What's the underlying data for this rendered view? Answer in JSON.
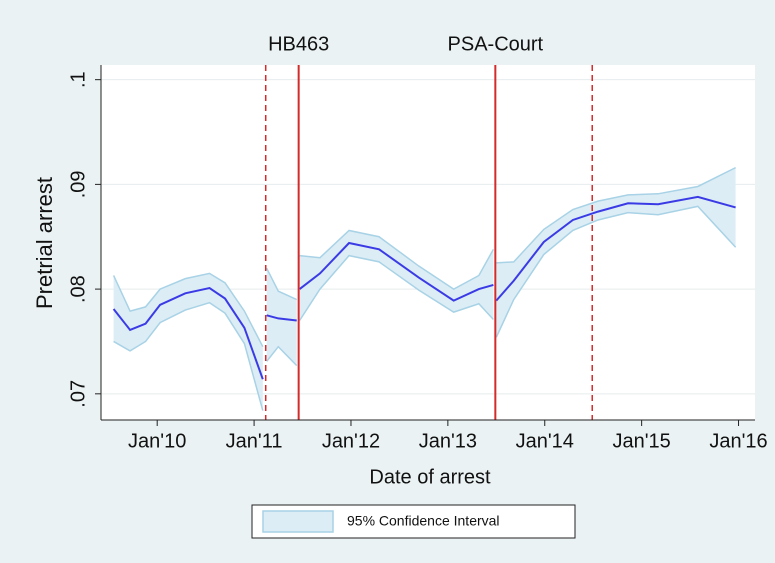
{
  "chart_data": {
    "type": "line",
    "x_label": "Date of arrest",
    "y_label": "Pretrial arrest",
    "xlim": [
      2009.42,
      2016.17
    ],
    "ylim": [
      0.0675,
      0.1014
    ],
    "xticks": [
      {
        "value": 2010,
        "label": "Jan'10"
      },
      {
        "value": 2011,
        "label": "Jan'11"
      },
      {
        "value": 2012,
        "label": "Jan'12"
      },
      {
        "value": 2013,
        "label": "Jan'13"
      },
      {
        "value": 2014,
        "label": "Jan'14"
      },
      {
        "value": 2015,
        "label": "Jan'15"
      },
      {
        "value": 2016,
        "label": "Jan'16"
      }
    ],
    "yticks": [
      {
        "value": 0.07,
        "label": ".07"
      },
      {
        "value": 0.08,
        "label": ".08"
      },
      {
        "value": 0.09,
        "label": ".09"
      },
      {
        "value": 0.1,
        "label": ".1"
      }
    ],
    "grid": true,
    "color": "#3b3be6",
    "x": [
      2009.55,
      2009.72,
      2009.88,
      2010.03,
      2010.29,
      2010.54,
      2010.7,
      2010.9,
      2011.09,
      2011.12,
      2011.13,
      2011.25,
      2011.44,
      2011.46,
      2011.47,
      2011.68,
      2011.98,
      2012.29,
      2012.7,
      2013.06,
      2013.32,
      2013.47,
      2013.49,
      2013.5,
      2013.68,
      2013.99,
      2014.29,
      2014.55,
      2014.86,
      2015.17,
      2015.58,
      2015.97
    ],
    "values": [
      0.0781,
      0.0761,
      0.0767,
      0.0785,
      0.0796,
      0.0801,
      0.0791,
      0.0763,
      0.0714,
      null,
      0.0775,
      0.0772,
      0.077,
      null,
      0.08,
      0.0815,
      0.0844,
      0.0838,
      0.0811,
      0.0789,
      0.08,
      0.0804,
      null,
      0.0789,
      0.0808,
      0.0845,
      0.0866,
      0.0874,
      0.0882,
      0.0881,
      0.0888,
      0.0878
    ],
    "ci": {
      "name": "95% Confidence Interval",
      "fill": "#dcedf5",
      "edge": "#a8d2e6",
      "lower": [
        0.075,
        0.0741,
        0.075,
        0.0768,
        0.078,
        0.0787,
        0.0777,
        0.0748,
        0.0684,
        null,
        0.0731,
        0.0745,
        0.0727,
        null,
        0.077,
        0.08,
        0.0832,
        0.0826,
        0.0799,
        0.0778,
        0.0786,
        0.0771,
        null,
        0.0754,
        0.079,
        0.0833,
        0.0856,
        0.0866,
        0.0873,
        0.0871,
        0.0879,
        0.084
      ],
      "upper": [
        0.0813,
        0.0779,
        0.0783,
        0.08,
        0.081,
        0.0815,
        0.0806,
        0.0779,
        0.0745,
        null,
        0.082,
        0.0798,
        0.079,
        null,
        0.0832,
        0.083,
        0.0856,
        0.085,
        0.0822,
        0.08,
        0.0813,
        0.0838,
        null,
        0.0825,
        0.0826,
        0.0857,
        0.0876,
        0.0884,
        0.089,
        0.0891,
        0.0898,
        0.0916
      ]
    },
    "vline_color": "#d42a2a",
    "vlines": [
      {
        "x": 2011.12,
        "style": "dashed"
      },
      {
        "x": 2011.46,
        "style": "solid",
        "label": "HB463"
      },
      {
        "x": 2013.49,
        "style": "solid",
        "label": "PSA-Court"
      },
      {
        "x": 2014.49,
        "style": "dashed"
      }
    ]
  }
}
